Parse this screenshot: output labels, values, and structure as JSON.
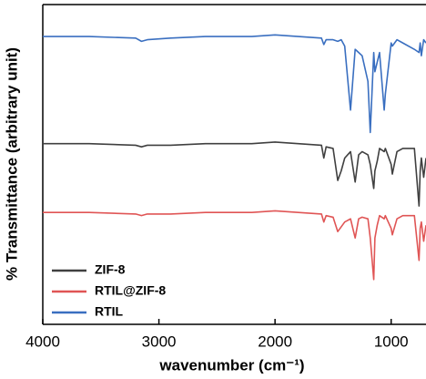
{
  "chart_data": {
    "type": "line",
    "xlabel": "wavenumber (cm⁻¹)",
    "ylabel": "% Transmittance (arbitrary unit)",
    "x": [
      4000,
      3600,
      3200,
      3150,
      3100,
      2900,
      2600,
      2200,
      2000,
      1800,
      1600,
      1580,
      1560,
      1500,
      1460,
      1430,
      1400,
      1350,
      1310,
      1280,
      1250,
      1200,
      1180,
      1150,
      1140,
      1120,
      1100,
      1060,
      1050,
      1000,
      990,
      950,
      900,
      800,
      760,
      750,
      740,
      720,
      700
    ],
    "series": [
      {
        "name": "ZIF-8",
        "color": "#404040",
        "values": [
          56.5,
          56.5,
          56,
          55.5,
          56,
          56,
          56.5,
          56.5,
          57,
          56.5,
          56,
          52,
          55.5,
          55,
          45,
          48,
          52,
          54,
          44.5,
          53,
          54,
          53,
          50,
          42.5,
          48,
          51,
          55,
          54,
          55,
          50,
          47,
          54,
          55,
          55,
          37,
          48,
          52,
          46,
          52
        ]
      },
      {
        "name": "RTIL@ZIF-8",
        "color": "#e05555",
        "values": [
          35,
          35,
          34.5,
          34,
          34.5,
          34.5,
          35,
          35,
          35.5,
          35,
          34.5,
          32,
          34,
          33.5,
          29,
          30.5,
          32,
          33,
          27,
          33,
          33.5,
          33,
          27,
          14,
          27,
          31,
          34,
          33,
          34,
          30,
          28,
          33,
          34,
          34,
          20,
          30,
          32,
          26,
          31
        ]
      },
      {
        "name": "RTIL",
        "color": "#3a6fc0",
        "values": [
          90,
          90,
          89.5,
          88.5,
          89,
          89.5,
          90,
          90,
          90.5,
          90,
          89.5,
          87.5,
          89,
          89,
          88.5,
          89,
          87,
          67,
          86,
          85,
          84,
          76,
          60,
          85,
          79,
          82,
          85,
          67,
          72,
          88,
          87,
          89,
          88,
          86,
          85,
          88,
          84,
          89,
          88
        ]
      }
    ],
    "xlim": [
      4000,
      700
    ],
    "xticks": [
      4000,
      3000,
      2000,
      1000
    ],
    "ylim": [
      0,
      100
    ],
    "legend": "lower left"
  }
}
